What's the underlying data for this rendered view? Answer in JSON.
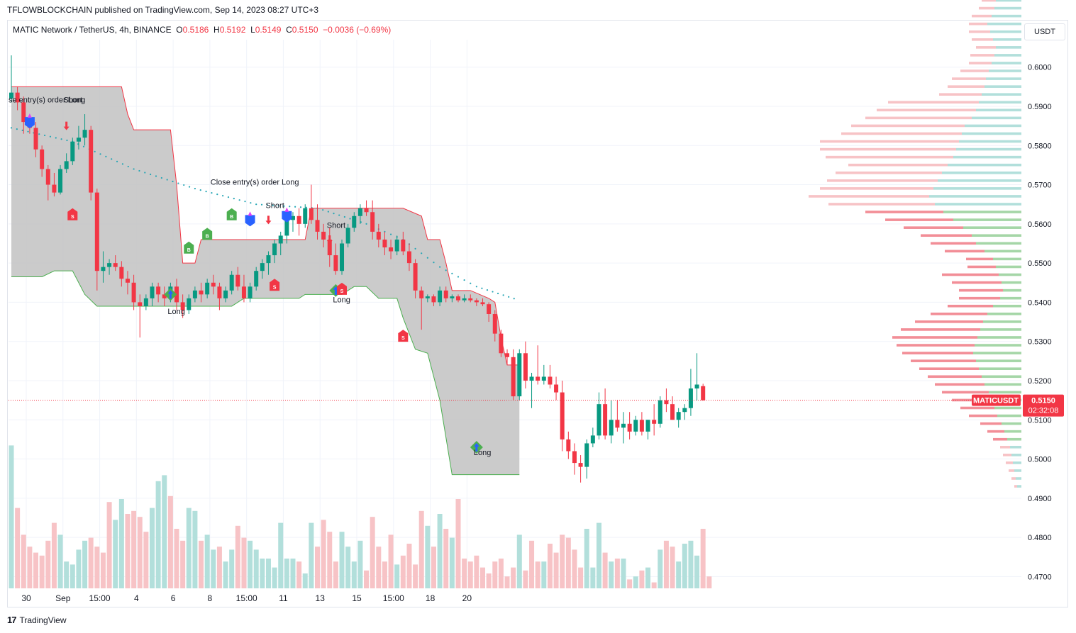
{
  "header": {
    "publisher": "TFLOWBLOCKCHAIN published on TradingView.com, Sep 14, 2023 08:27 UTC+3",
    "symbol": "MATIC Network / TetherUS, 4h, BINANCE",
    "o_label": "O",
    "o": "0.5186",
    "h_label": "H",
    "h": "0.5192",
    "l_label": "L",
    "l": "0.5149",
    "c_label": "C",
    "c": "0.5150",
    "change": "−0.0036 (−0.69%)",
    "currency": "USDT"
  },
  "footer": {
    "brand": "TradingView",
    "logo": "17"
  },
  "chart_data": {
    "type": "candlestick",
    "timeframe": "4h",
    "colors": {
      "up": "#089981",
      "down": "#f23645",
      "up_volume": "#b2dfdb",
      "down_volume": "#f7c3c6",
      "channel": "#c2c2c2",
      "trail": "#26a6b5"
    },
    "y_ticks": [
      0.6,
      0.59,
      0.58,
      0.57,
      0.56,
      0.55,
      0.54,
      0.53,
      0.52,
      0.51,
      0.5,
      0.49,
      0.48,
      0.47
    ],
    "y_tick_labels": [
      "0.6000",
      "0.5900",
      "0.5800",
      "0.5700",
      "0.5600",
      "0.5500",
      "0.5400",
      "0.5300",
      "0.5200",
      "0.5100",
      "0.5000",
      "0.4900",
      "0.4800",
      "0.4700"
    ],
    "y_range": [
      0.467,
      0.607
    ],
    "x_ticks": [
      {
        "i": 0,
        "label": "30"
      },
      {
        "i": 6,
        "label": "Sep"
      },
      {
        "i": 12,
        "label": "15:00"
      },
      {
        "i": 18,
        "label": "4"
      },
      {
        "i": 24,
        "label": "6"
      },
      {
        "i": 30,
        "label": "8"
      },
      {
        "i": 36,
        "label": "15:00"
      },
      {
        "i": 42,
        "label": "11"
      },
      {
        "i": 48,
        "label": "13"
      },
      {
        "i": 54,
        "label": "15"
      },
      {
        "i": 60,
        "label": "15:00"
      },
      {
        "i": 66,
        "label": "18"
      },
      {
        "i": 72,
        "label": "20"
      }
    ],
    "candles": [
      [
        0.592,
        0.603,
        0.591,
        0.5935
      ],
      [
        0.5935,
        0.595,
        0.589,
        0.591
      ],
      [
        0.591,
        0.5925,
        0.583,
        0.586
      ],
      [
        0.586,
        0.5875,
        0.583,
        0.5845
      ],
      [
        0.5845,
        0.586,
        0.577,
        0.579
      ],
      [
        0.579,
        0.58,
        0.572,
        0.574
      ],
      [
        0.574,
        0.575,
        0.566,
        0.57
      ],
      [
        0.57,
        0.573,
        0.567,
        0.568
      ],
      [
        0.568,
        0.575,
        0.5675,
        0.574
      ],
      [
        0.574,
        0.578,
        0.573,
        0.576
      ],
      [
        0.576,
        0.582,
        0.575,
        0.581
      ],
      [
        0.581,
        0.585,
        0.579,
        0.582
      ],
      [
        0.582,
        0.588,
        0.58,
        0.584
      ],
      [
        0.584,
        0.585,
        0.566,
        0.568
      ],
      [
        0.568,
        0.569,
        0.543,
        0.548
      ],
      [
        0.548,
        0.553,
        0.545,
        0.549
      ],
      [
        0.549,
        0.551,
        0.547,
        0.55
      ],
      [
        0.55,
        0.552,
        0.548,
        0.549
      ],
      [
        0.549,
        0.5505,
        0.544,
        0.546
      ],
      [
        0.546,
        0.548,
        0.542,
        0.545
      ],
      [
        0.545,
        0.547,
        0.538,
        0.54
      ],
      [
        0.54,
        0.542,
        0.531,
        0.539
      ],
      [
        0.539,
        0.542,
        0.538,
        0.541
      ],
      [
        0.541,
        0.545,
        0.539,
        0.544
      ],
      [
        0.544,
        0.545,
        0.54,
        0.542
      ],
      [
        0.542,
        0.544,
        0.539,
        0.541
      ],
      [
        0.541,
        0.545,
        0.54,
        0.544
      ],
      [
        0.544,
        0.546,
        0.538,
        0.54
      ],
      [
        0.54,
        0.542,
        0.536,
        0.538
      ],
      [
        0.538,
        0.542,
        0.537,
        0.541
      ],
      [
        0.541,
        0.544,
        0.54,
        0.543
      ],
      [
        0.543,
        0.545,
        0.54,
        0.542
      ],
      [
        0.542,
        0.546,
        0.541,
        0.545
      ],
      [
        0.545,
        0.547,
        0.542,
        0.544
      ],
      [
        0.544,
        0.545,
        0.538,
        0.541
      ],
      [
        0.541,
        0.544,
        0.54,
        0.543
      ],
      [
        0.543,
        0.548,
        0.542,
        0.547
      ],
      [
        0.547,
        0.549,
        0.543,
        0.544
      ],
      [
        0.544,
        0.547,
        0.54,
        0.541
      ],
      [
        0.541,
        0.545,
        0.54,
        0.544
      ],
      [
        0.544,
        0.549,
        0.543,
        0.548
      ],
      [
        0.548,
        0.551,
        0.546,
        0.55
      ],
      [
        0.55,
        0.553,
        0.547,
        0.552
      ],
      [
        0.552,
        0.556,
        0.55,
        0.555
      ],
      [
        0.555,
        0.558,
        0.552,
        0.557
      ],
      [
        0.557,
        0.562,
        0.555,
        0.561
      ],
      [
        0.561,
        0.563,
        0.558,
        0.562
      ],
      [
        0.562,
        0.564,
        0.557,
        0.56
      ],
      [
        0.56,
        0.565,
        0.559,
        0.564
      ],
      [
        0.564,
        0.57,
        0.56,
        0.561
      ],
      [
        0.561,
        0.565,
        0.556,
        0.558
      ],
      [
        0.558,
        0.56,
        0.554,
        0.556
      ],
      [
        0.556,
        0.559,
        0.549,
        0.552
      ],
      [
        0.552,
        0.555,
        0.547,
        0.548
      ],
      [
        0.548,
        0.556,
        0.547,
        0.555
      ],
      [
        0.555,
        0.56,
        0.554,
        0.559
      ],
      [
        0.559,
        0.563,
        0.558,
        0.562
      ],
      [
        0.562,
        0.565,
        0.56,
        0.564
      ],
      [
        0.564,
        0.566,
        0.562,
        0.563
      ],
      [
        0.563,
        0.566,
        0.556,
        0.558
      ],
      [
        0.558,
        0.56,
        0.554,
        0.556
      ],
      [
        0.556,
        0.558,
        0.552,
        0.554
      ],
      [
        0.554,
        0.556,
        0.551,
        0.553
      ],
      [
        0.553,
        0.557,
        0.552,
        0.556
      ],
      [
        0.556,
        0.558,
        0.552,
        0.553
      ],
      [
        0.553,
        0.555,
        0.548,
        0.55
      ],
      [
        0.55,
        0.551,
        0.541,
        0.543
      ],
      [
        0.543,
        0.544,
        0.533,
        0.541
      ],
      [
        0.541,
        0.542,
        0.54,
        0.5415
      ],
      [
        0.5415,
        0.542,
        0.539,
        0.54
      ],
      [
        0.54,
        0.544,
        0.539,
        0.543
      ],
      [
        0.543,
        0.544,
        0.54,
        0.541
      ],
      [
        0.541,
        0.542,
        0.54,
        0.5415
      ],
      [
        0.5415,
        0.542,
        0.54,
        0.5405
      ],
      [
        0.5405,
        0.542,
        0.54,
        0.541
      ],
      [
        0.541,
        0.542,
        0.54,
        0.5405
      ],
      [
        0.5405,
        0.541,
        0.539,
        0.54
      ],
      [
        0.54,
        0.541,
        0.539,
        0.5395
      ],
      [
        0.5395,
        0.54,
        0.535,
        0.537
      ],
      [
        0.537,
        0.538,
        0.53,
        0.532
      ],
      [
        0.532,
        0.533,
        0.526,
        0.527
      ],
      [
        0.527,
        0.528,
        0.524,
        0.526
      ],
      [
        0.526,
        0.528,
        0.515,
        0.516
      ],
      [
        0.516,
        0.528,
        0.515,
        0.527
      ],
      [
        0.527,
        0.53,
        0.518,
        0.52
      ],
      [
        0.52,
        0.522,
        0.513,
        0.521
      ],
      [
        0.521,
        0.529,
        0.519,
        0.52
      ],
      [
        0.52,
        0.524,
        0.519,
        0.521
      ],
      [
        0.521,
        0.524,
        0.518,
        0.519
      ],
      [
        0.519,
        0.521,
        0.515,
        0.517
      ],
      [
        0.517,
        0.52,
        0.502,
        0.505
      ],
      [
        0.505,
        0.507,
        0.5,
        0.502
      ],
      [
        0.502,
        0.504,
        0.496,
        0.499
      ],
      [
        0.499,
        0.501,
        0.494,
        0.498
      ],
      [
        0.498,
        0.505,
        0.495,
        0.504
      ],
      [
        0.504,
        0.508,
        0.503,
        0.506
      ],
      [
        0.506,
        0.517,
        0.505,
        0.514
      ],
      [
        0.514,
        0.518,
        0.505,
        0.506
      ],
      [
        0.506,
        0.515,
        0.504,
        0.51
      ],
      [
        0.51,
        0.515,
        0.507,
        0.508
      ],
      [
        0.508,
        0.512,
        0.504,
        0.509
      ],
      [
        0.509,
        0.512,
        0.505,
        0.507
      ],
      [
        0.507,
        0.511,
        0.506,
        0.51
      ],
      [
        0.51,
        0.512,
        0.506,
        0.507
      ],
      [
        0.507,
        0.51,
        0.505,
        0.51
      ],
      [
        0.51,
        0.514,
        0.506,
        0.509
      ],
      [
        0.509,
        0.516,
        0.508,
        0.515
      ],
      [
        0.515,
        0.518,
        0.512,
        0.514
      ],
      [
        0.514,
        0.516,
        0.51,
        0.51
      ],
      [
        0.51,
        0.513,
        0.508,
        0.512
      ],
      [
        0.512,
        0.514,
        0.51,
        0.513
      ],
      [
        0.513,
        0.523,
        0.511,
        0.518
      ],
      [
        0.518,
        0.527,
        0.515,
        0.519
      ],
      [
        0.5186,
        0.5192,
        0.5149,
        0.515
      ]
    ],
    "volume": [
      48,
      27,
      18,
      14,
      12,
      11,
      16,
      22,
      18,
      9,
      8,
      13,
      16,
      17,
      14,
      12,
      29,
      23,
      30,
      25,
      26,
      24,
      19,
      27,
      36,
      38,
      31,
      20,
      16,
      27,
      26,
      16,
      18,
      13,
      14,
      9,
      13,
      21,
      17,
      16,
      13,
      10,
      10,
      7,
      22,
      10,
      10,
      9,
      5,
      22,
      14,
      23,
      19,
      9,
      19,
      14,
      9,
      16,
      6,
      24,
      14,
      9,
      18,
      8,
      11,
      15,
      8,
      26,
      21,
      14,
      25,
      20,
      17,
      30,
      10,
      9,
      11,
      7,
      5,
      9,
      10,
      4,
      7,
      18,
      6,
      16,
      9,
      9,
      15,
      12,
      18,
      17,
      13,
      7,
      20,
      7,
      22,
      12,
      9,
      10,
      10,
      3,
      4,
      6,
      7,
      2,
      13,
      16,
      14,
      9,
      15,
      16,
      11,
      20,
      4
    ],
    "volume_colors": [
      "up",
      "down",
      "down",
      "down",
      "down",
      "down",
      "down",
      "down",
      "up",
      "up",
      "up",
      "up",
      "up",
      "down",
      "down",
      "down",
      "down",
      "up",
      "up",
      "down",
      "down",
      "down",
      "down",
      "up",
      "up",
      "up",
      "down",
      "down",
      "down",
      "up",
      "up",
      "down",
      "up",
      "up",
      "down",
      "up",
      "up",
      "down",
      "down",
      "up",
      "up",
      "up",
      "up",
      "up",
      "up",
      "up",
      "up",
      "down",
      "up",
      "up",
      "down",
      "down",
      "down",
      "down",
      "up",
      "up",
      "up",
      "up",
      "down",
      "down",
      "down",
      "down",
      "down",
      "up",
      "down",
      "down",
      "down",
      "down",
      "up",
      "down",
      "up",
      "down",
      "up",
      "down",
      "down",
      "down",
      "down",
      "down",
      "down",
      "down",
      "down",
      "down",
      "down",
      "up",
      "down",
      "down",
      "down",
      "up",
      "down",
      "down",
      "down",
      "down",
      "down",
      "down",
      "up",
      "up",
      "up",
      "down",
      "up",
      "down",
      "up",
      "down",
      "up",
      "down",
      "up",
      "down",
      "up",
      "down",
      "down",
      "up",
      "up",
      "up",
      "up",
      "down"
    ],
    "channel_upper": [
      [
        0,
        0.595
      ],
      [
        18,
        0.595
      ],
      [
        19,
        0.588
      ],
      [
        20,
        0.584
      ],
      [
        26,
        0.584
      ],
      [
        27,
        0.57
      ],
      [
        28,
        0.55
      ],
      [
        30,
        0.55
      ],
      [
        31,
        0.556
      ],
      [
        48,
        0.556
      ],
      [
        49,
        0.564
      ],
      [
        64,
        0.564
      ],
      [
        67,
        0.562
      ],
      [
        68,
        0.556
      ],
      [
        70,
        0.556
      ],
      [
        71,
        0.55
      ],
      [
        72,
        0.543
      ],
      [
        75,
        0.543
      ],
      [
        78,
        0.541
      ],
      [
        79,
        0.54
      ],
      [
        80,
        0.531
      ],
      [
        81,
        0.524
      ],
      [
        83,
        0.524
      ]
    ],
    "channel_lower": [
      [
        0,
        0.5465
      ],
      [
        5,
        0.5465
      ],
      [
        7,
        0.548
      ],
      [
        10,
        0.548
      ],
      [
        12,
        0.542
      ],
      [
        14,
        0.539
      ],
      [
        36,
        0.539
      ],
      [
        38,
        0.541
      ],
      [
        47,
        0.541
      ],
      [
        48,
        0.542
      ],
      [
        54,
        0.542
      ],
      [
        56,
        0.544
      ],
      [
        58,
        0.544
      ],
      [
        60,
        0.541
      ],
      [
        63,
        0.541
      ],
      [
        64,
        0.536
      ],
      [
        66,
        0.528
      ],
      [
        68,
        0.527
      ],
      [
        70,
        0.515
      ],
      [
        72,
        0.496
      ],
      [
        73,
        0.496
      ],
      [
        74,
        0.496
      ],
      [
        83,
        0.496
      ]
    ],
    "trail_line": [
      [
        0,
        0.5845
      ],
      [
        10,
        0.581
      ],
      [
        20,
        0.574
      ],
      [
        30,
        0.569
      ],
      [
        40,
        0.565
      ],
      [
        50,
        0.564
      ],
      [
        58,
        0.56
      ],
      [
        64,
        0.556
      ],
      [
        70,
        0.549
      ],
      [
        76,
        0.544
      ],
      [
        83,
        0.5405
      ]
    ],
    "last_price": {
      "label": "MATICUSDT",
      "value": 0.515,
      "value_label": "0.5150",
      "countdown": "02:32:08"
    },
    "annotations": [
      {
        "i": 0,
        "y": 0.591,
        "text": "se entry(s) order Long"
      },
      {
        "i": 9,
        "y": 0.591,
        "text": "Short"
      },
      {
        "i": 33,
        "y": 0.57,
        "text": "Close entry(s) order Long"
      },
      {
        "i": 42,
        "y": 0.564,
        "text": "Short"
      },
      {
        "i": 52,
        "y": 0.559,
        "text": "Short"
      },
      {
        "i": 26,
        "y": 0.537,
        "text": "Long"
      },
      {
        "i": 53,
        "y": 0.54,
        "text": "Long"
      },
      {
        "i": 76,
        "y": 0.501,
        "text": "Long"
      }
    ],
    "markers": [
      {
        "i": 3,
        "y": 0.586,
        "kind": "sl"
      },
      {
        "i": 9,
        "y": 0.585,
        "kind": "short"
      },
      {
        "i": 10,
        "y": 0.562,
        "kind": "s"
      },
      {
        "i": 26,
        "y": 0.542,
        "kind": "long"
      },
      {
        "i": 29,
        "y": 0.5535,
        "kind": "b"
      },
      {
        "i": 32,
        "y": 0.557,
        "kind": "b"
      },
      {
        "i": 36,
        "y": 0.562,
        "kind": "b"
      },
      {
        "i": 39,
        "y": 0.561,
        "kind": "sl"
      },
      {
        "i": 42,
        "y": 0.561,
        "kind": "short"
      },
      {
        "i": 43,
        "y": 0.544,
        "kind": "s"
      },
      {
        "i": 45,
        "y": 0.562,
        "kind": "sl"
      },
      {
        "i": 52,
        "y": 0.556,
        "kind": "short"
      },
      {
        "i": 53,
        "y": 0.543,
        "kind": "long"
      },
      {
        "i": 54,
        "y": 0.543,
        "kind": "s"
      },
      {
        "i": 64,
        "y": 0.531,
        "kind": "s"
      },
      {
        "i": 76,
        "y": 0.503,
        "kind": "long"
      }
    ],
    "volume_profile": {
      "price_start": 0.493,
      "price_step": 0.002,
      "buy": [
        6,
        8,
        10,
        12,
        14,
        16,
        20,
        24,
        28,
        34,
        38,
        42,
        46,
        52,
        56,
        60,
        64,
        68,
        66,
        62,
        58,
        54,
        48,
        40,
        30,
        26,
        28,
        32,
        36,
        40,
        52,
        64,
        70,
        82,
        96,
        110,
        122,
        130,
        124,
        118,
        112,
        104,
        96,
        92,
        88,
        84,
        80,
        70,
        64,
        60,
        56,
        52,
        50,
        46,
        42,
        38,
        36,
        40,
        44,
        48,
        42,
        38,
        36,
        30,
        26,
        22,
        18,
        16
      ],
      "sell": [
        4,
        6,
        8,
        10,
        12,
        14,
        20,
        24,
        30,
        40,
        48,
        56,
        66,
        70,
        76,
        84,
        92,
        100,
        110,
        120,
        112,
        96,
        80,
        64,
        58,
        62,
        70,
        80,
        40,
        38,
        56,
        64,
        72,
        84,
        96,
        110,
        150,
        170,
        160,
        156,
        150,
        140,
        180,
        192,
        196,
        170,
        160,
        150,
        140,
        128,
        60,
        52,
        48,
        40,
        32,
        34,
        28,
        30,
        30,
        26,
        28,
        22,
        20,
        18,
        16,
        14,
        12,
        10
      ]
    }
  }
}
